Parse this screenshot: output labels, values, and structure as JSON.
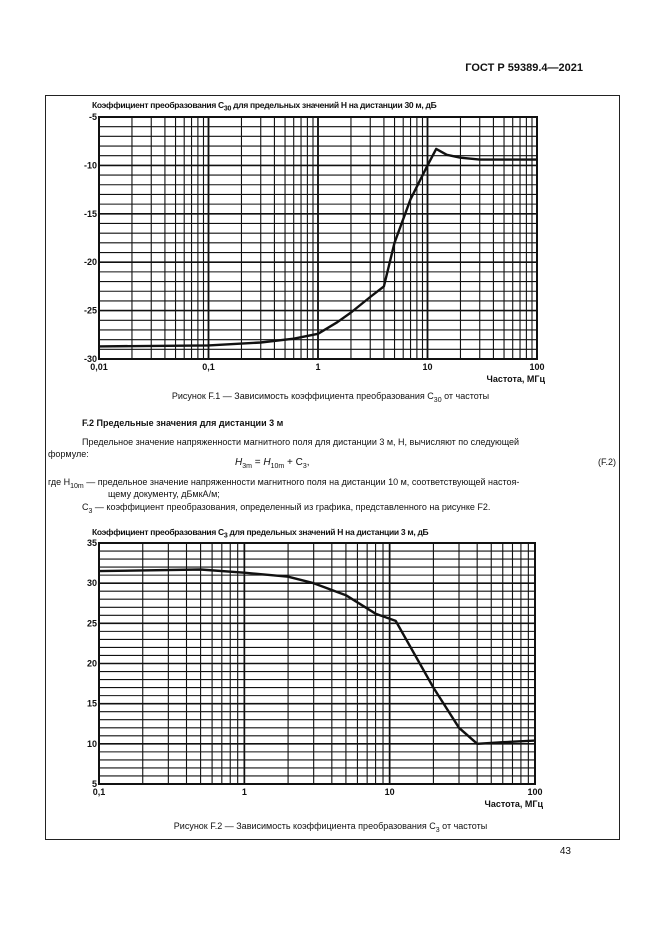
{
  "header": {
    "doc_id": "ГОСТ Р 59389.4—2021"
  },
  "page_number": "43",
  "section": {
    "title": "F.2  Предельные значения для дистанции 3 м",
    "para": "Предельное значение напряженности магнитного поля для дистанции 3 м, H, вычисляют по следующей",
    "para2": "формуле:",
    "formula": {
      "lhs": "H",
      "lhs_sub": "3m",
      "eq": " = ",
      "h": "H",
      "h_sub": "10m",
      "plus": " + C",
      "c_sub": "3",
      "end": ",",
      "number": "(F.2)"
    },
    "def1_pre": "где H",
    "def1_sub": "10m",
    "def1": " — предельное значение напряженности магнитного поля на дистанции 10 м, соответствующей настоя-",
    "def1_cont": "щему документу, дБмкА/м;",
    "def2_pre": "C",
    "def2_sub": "3",
    "def2": " — коэффициент преобразования, определенный из графика, представленного на рисунке F2."
  },
  "figures": [
    {
      "caption_pre": "Рисунок F.1 — Зависимость коэффициента преобразования C",
      "caption_sub": "30",
      "caption_post": " от частоты",
      "title_pre": "Коэффициент преобразования C",
      "title_sub": "30",
      "title_post": " для предельных значений H на дистанции 30 м, дБ"
    },
    {
      "caption_pre": "Рисунок F.2 — Зависимость коэффициента преобразования C",
      "caption_sub": "3",
      "caption_post": " от частоты",
      "title_pre": "Коэффициент преобразования C",
      "title_sub": "3",
      "title_post": " для предельных значений H на дистанции 3 м, дБ"
    }
  ],
  "chart_data": [
    {
      "type": "line",
      "xscale": "log",
      "xlim": [
        0.01,
        100
      ],
      "ylim": [
        -30,
        -5
      ],
      "grid": true,
      "xlabel": "Частота, МГц",
      "xticks": [
        "0,01",
        "0,1",
        "1",
        "10",
        "100"
      ],
      "yticks": [
        "-5",
        "-10",
        "-15",
        "-20",
        "-25",
        "-30"
      ],
      "x": [
        0.01,
        0.1,
        0.3,
        0.6,
        1,
        1.5,
        2,
        3,
        4,
        5,
        7,
        10,
        12,
        15,
        20,
        30,
        100
      ],
      "y": [
        -28.7,
        -28.6,
        -28.3,
        -27.9,
        -27.4,
        -26.2,
        -25.2,
        -23.6,
        -22.5,
        -18,
        -13.5,
        -10,
        -8.3,
        -8.9,
        -9.2,
        -9.4,
        -9.4
      ]
    },
    {
      "type": "line",
      "xscale": "log",
      "xlim": [
        0.1,
        100
      ],
      "ylim": [
        5,
        35
      ],
      "grid": true,
      "xlabel": "Частота, МГц",
      "xticks": [
        "0,1",
        "1",
        "10",
        "100"
      ],
      "yticks": [
        "35",
        "30",
        "25",
        "20",
        "15",
        "10",
        "5"
      ],
      "x": [
        0.1,
        0.5,
        1,
        2,
        3,
        5,
        8,
        11,
        20,
        30,
        40,
        60,
        100
      ],
      "y": [
        31.5,
        31.7,
        31.3,
        30.8,
        30,
        28.5,
        26.2,
        25.3,
        17,
        12,
        10,
        10.2,
        10.4
      ]
    }
  ]
}
